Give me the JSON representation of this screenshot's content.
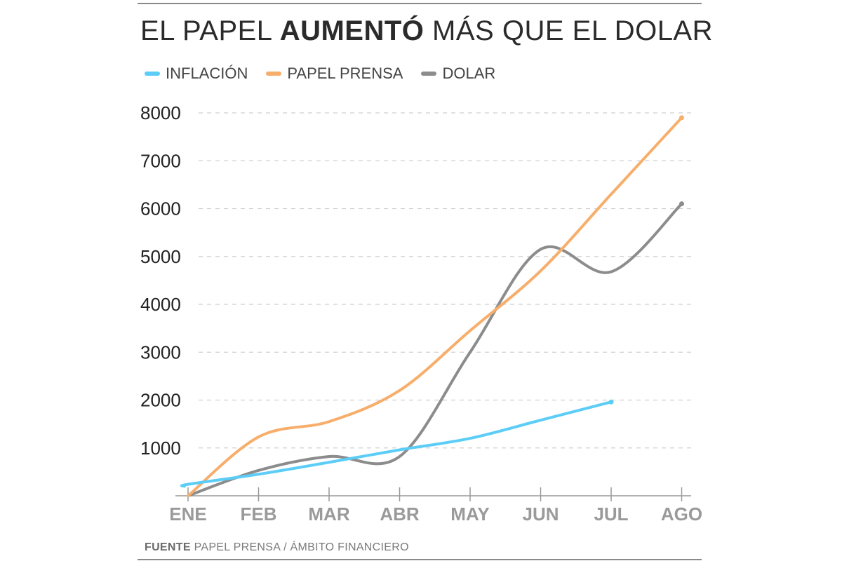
{
  "title": {
    "lead": "EL PAPEL",
    "bold": "AUMENTÓ",
    "tail": "MÁS QUE EL DOLAR"
  },
  "source": {
    "label": "FUENTE",
    "text": "PAPEL PRENSA / ÁMBITO FINANCIERO"
  },
  "colors": {
    "inflacion": "#5bcdf7",
    "papel": "#f7ae6b",
    "dolar": "#8c8c8c",
    "grid": "#cfcfcf",
    "axis": "#999999"
  },
  "chart_data": {
    "type": "line",
    "title": "EL PAPEL AUMENTÓ MÁS QUE EL DOLAR",
    "xlabel": "",
    "ylabel": "",
    "categories": [
      "ENE",
      "FEB",
      "MAR",
      "ABR",
      "MAY",
      "JUN",
      "JUL",
      "AGO"
    ],
    "yticks": [
      1000,
      2000,
      3000,
      4000,
      5000,
      6000,
      7000,
      8000
    ],
    "ylim": [
      0,
      8000
    ],
    "grid": true,
    "legend_position": "top-left",
    "series": [
      {
        "name": "INFLACIÓN",
        "key": "inflacion",
        "x": [
          -0.05,
          0,
          1,
          2,
          3,
          4,
          5,
          6
        ],
        "values": [
          200,
          240,
          450,
          700,
          960,
          1200,
          1580,
          1960
        ]
      },
      {
        "name": "PAPEL PRENSA",
        "key": "papel",
        "x": [
          0,
          1,
          2,
          3,
          4,
          5,
          6,
          7
        ],
        "values": [
          0,
          1230,
          1550,
          2200,
          3450,
          4700,
          6300,
          7900
        ]
      },
      {
        "name": "DOLAR",
        "key": "dolar",
        "x": [
          0,
          1,
          2,
          3,
          4,
          5,
          6,
          7
        ],
        "values": [
          0,
          530,
          820,
          820,
          3000,
          5150,
          4680,
          6100
        ]
      }
    ]
  }
}
